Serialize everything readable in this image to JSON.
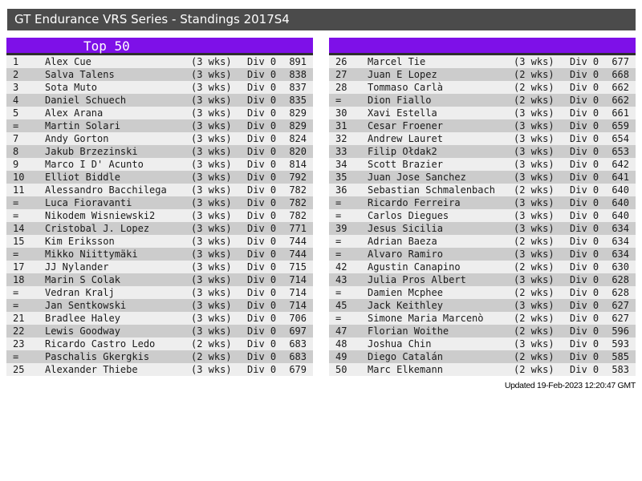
{
  "title": "GT Endurance VRS Series - Standings 2017S4",
  "footer": "Updated 19-Feb-2023 12:20:47 GMT",
  "colors": {
    "accent_purple": "#7e10e8",
    "titlebar_bg": "#4b4b4b",
    "header_border": "#2e2e2e",
    "row_light": "#eeeeee",
    "row_dark": "#cccccc"
  },
  "columns": [
    "rank",
    "name",
    "weeks",
    "division",
    "points"
  ],
  "tables": {
    "left": {
      "header": "Top 50",
      "rows": [
        [
          "1",
          "Alex Cue",
          "(3 wks)",
          "Div 0",
          "891"
        ],
        [
          "2",
          "Salva Talens",
          "(3 wks)",
          "Div 0",
          "838"
        ],
        [
          "3",
          "Sota Muto",
          "(3 wks)",
          "Div 0",
          "837"
        ],
        [
          "4",
          "Daniel Schuech",
          "(3 wks)",
          "Div 0",
          "835"
        ],
        [
          "5",
          "Alex Arana",
          "(3 wks)",
          "Div 0",
          "829"
        ],
        [
          "=",
          "Martin Solari",
          "(3 wks)",
          "Div 0",
          "829"
        ],
        [
          "7",
          "Andy Gorton",
          "(3 wks)",
          "Div 0",
          "824"
        ],
        [
          "8",
          "Jakub Brzezinski",
          "(3 wks)",
          "Div 0",
          "820"
        ],
        [
          "9",
          "Marco I D' Acunto",
          "(3 wks)",
          "Div 0",
          "814"
        ],
        [
          "10",
          "Elliot Biddle",
          "(3 wks)",
          "Div 0",
          "792"
        ],
        [
          "11",
          "Alessandro Bacchilega",
          "(3 wks)",
          "Div 0",
          "782"
        ],
        [
          "=",
          "Luca Fioravanti",
          "(3 wks)",
          "Div 0",
          "782"
        ],
        [
          "=",
          "Nikodem Wisniewski2",
          "(3 wks)",
          "Div 0",
          "782"
        ],
        [
          "14",
          "Cristobal J. Lopez",
          "(3 wks)",
          "Div 0",
          "771"
        ],
        [
          "15",
          "Kim Eriksson",
          "(3 wks)",
          "Div 0",
          "744"
        ],
        [
          "=",
          "Mikko Niittymäki",
          "(3 wks)",
          "Div 0",
          "744"
        ],
        [
          "17",
          "JJ Nylander",
          "(3 wks)",
          "Div 0",
          "715"
        ],
        [
          "18",
          "Marin S Colak",
          "(3 wks)",
          "Div 0",
          "714"
        ],
        [
          "=",
          "Vedran Kralj",
          "(3 wks)",
          "Div 0",
          "714"
        ],
        [
          "=",
          "Jan Sentkowski",
          "(3 wks)",
          "Div 0",
          "714"
        ],
        [
          "21",
          "Bradlee Haley",
          "(3 wks)",
          "Div 0",
          "706"
        ],
        [
          "22",
          "Lewis Goodway",
          "(3 wks)",
          "Div 0",
          "697"
        ],
        [
          "23",
          "Ricardo Castro Ledo",
          "(2 wks)",
          "Div 0",
          "683"
        ],
        [
          "=",
          "Paschalis Gkergkis",
          "(2 wks)",
          "Div 0",
          "683"
        ],
        [
          "25",
          "Alexander Thiebe",
          "(3 wks)",
          "Div 0",
          "679"
        ]
      ]
    },
    "right": {
      "header": "",
      "rows": [
        [
          "26",
          "Marcel Tie",
          "(3 wks)",
          "Div 0",
          "677"
        ],
        [
          "27",
          "Juan E Lopez",
          "(2 wks)",
          "Div 0",
          "668"
        ],
        [
          "28",
          "Tommaso Carlà",
          "(2 wks)",
          "Div 0",
          "662"
        ],
        [
          "=",
          "Dion Fiallo",
          "(2 wks)",
          "Div 0",
          "662"
        ],
        [
          "30",
          "Xavi Estella",
          "(3 wks)",
          "Div 0",
          "661"
        ],
        [
          "31",
          "Cesar Froener",
          "(3 wks)",
          "Div 0",
          "659"
        ],
        [
          "32",
          "Andrew Lauret",
          "(3 wks)",
          "Div 0",
          "654"
        ],
        [
          "33",
          "Filip Ołdak2",
          "(3 wks)",
          "Div 0",
          "653"
        ],
        [
          "34",
          "Scott Brazier",
          "(3 wks)",
          "Div 0",
          "642"
        ],
        [
          "35",
          "Juan Jose Sanchez",
          "(3 wks)",
          "Div 0",
          "641"
        ],
        [
          "36",
          "Sebastian Schmalenbach",
          "(2 wks)",
          "Div 0",
          "640"
        ],
        [
          "=",
          "Ricardo Ferreira",
          "(3 wks)",
          "Div 0",
          "640"
        ],
        [
          "=",
          "Carlos Diegues",
          "(3 wks)",
          "Div 0",
          "640"
        ],
        [
          "39",
          "Jesus Sicilia",
          "(3 wks)",
          "Div 0",
          "634"
        ],
        [
          "=",
          "Adrian Baeza",
          "(2 wks)",
          "Div 0",
          "634"
        ],
        [
          "=",
          "Alvaro Ramiro",
          "(3 wks)",
          "Div 0",
          "634"
        ],
        [
          "42",
          "Agustin Canapino",
          "(2 wks)",
          "Div 0",
          "630"
        ],
        [
          "43",
          "Julia Pros Albert",
          "(3 wks)",
          "Div 0",
          "628"
        ],
        [
          "=",
          "Damien Mcphee",
          "(2 wks)",
          "Div 0",
          "628"
        ],
        [
          "45",
          "Jack Keithley",
          "(3 wks)",
          "Div 0",
          "627"
        ],
        [
          "=",
          "Simone Maria Marcenò",
          "(2 wks)",
          "Div 0",
          "627"
        ],
        [
          "47",
          "Florian Woithe",
          "(2 wks)",
          "Div 0",
          "596"
        ],
        [
          "48",
          "Joshua Chin",
          "(3 wks)",
          "Div 0",
          "593"
        ],
        [
          "49",
          "Diego Catalán",
          "(2 wks)",
          "Div 0",
          "585"
        ],
        [
          "50",
          "Marc Elkemann",
          "(2 wks)",
          "Div 0",
          "583"
        ]
      ]
    }
  }
}
